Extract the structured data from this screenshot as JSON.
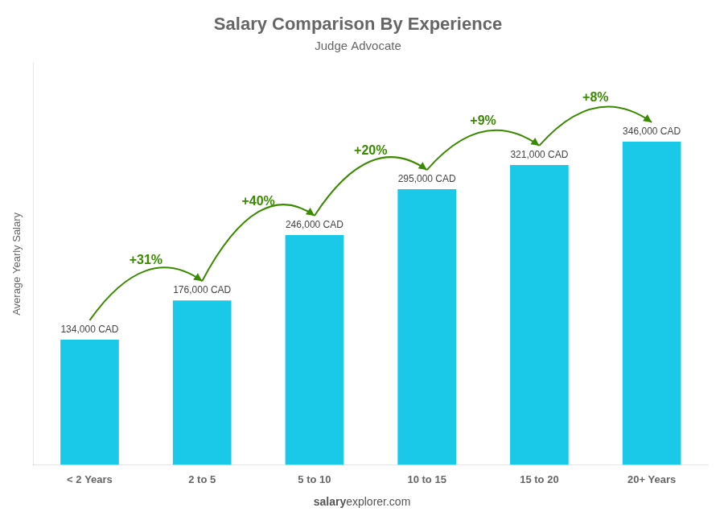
{
  "chart_data": {
    "type": "bar",
    "title": "Salary Comparison By Experience",
    "subtitle": "Judge Advocate",
    "categories": [
      "< 2 Years",
      "2 to 5",
      "5 to 10",
      "10 to 15",
      "15 to 20",
      "20+ Years"
    ],
    "values": [
      134000,
      176000,
      246000,
      295000,
      321000,
      346000
    ],
    "value_labels": [
      "134,000 CAD",
      "176,000 CAD",
      "246,000 CAD",
      "295,000 CAD",
      "321,000 CAD",
      "346,000 CAD"
    ],
    "data_labels": true,
    "annotations": [
      "+31%",
      "+40%",
      "+20%",
      "+9%",
      "+8%"
    ],
    "ylabel": "Average Yearly Salary",
    "footer": [
      "salary",
      "explorer.com"
    ],
    "color": "#1AC8E8",
    "ylim": [
      0,
      430000
    ],
    "grid": false,
    "tick_labels": "x"
  }
}
